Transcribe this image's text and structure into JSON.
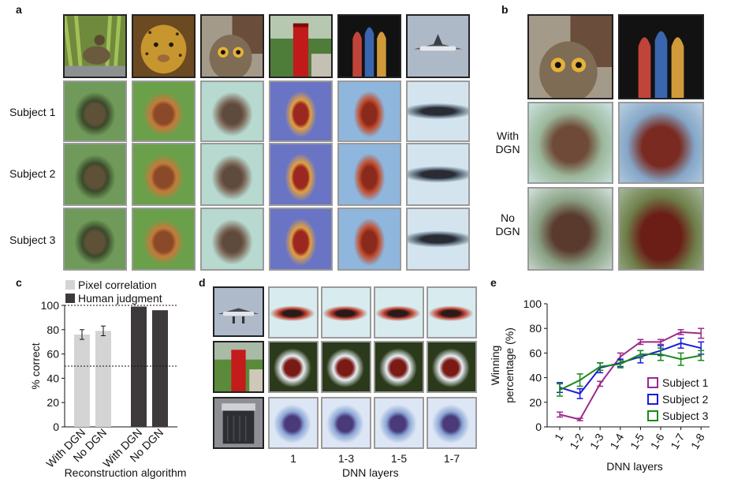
{
  "panels": {
    "a": "a",
    "b": "b",
    "c": "c",
    "d": "d",
    "e": "e"
  },
  "panel_a": {
    "subjects": [
      "Subject 1",
      "Subject 2",
      "Subject 3"
    ],
    "images": [
      "duck-image",
      "leopard-image",
      "owl-image",
      "red-postbox-image",
      "stained-glass-window-image",
      "airplane-image"
    ]
  },
  "panel_b": {
    "row_labels": {
      "with_dgn_1": "With",
      "with_dgn_2": "DGN",
      "no_dgn_1": "No",
      "no_dgn_2": "DGN"
    },
    "images": [
      "owl-image",
      "stained-glass-window-image"
    ]
  },
  "panel_d": {
    "xlabel": "DNN layers",
    "column_labels": [
      "1",
      "1-3",
      "1-5",
      "1-7"
    ],
    "images": [
      "airplane-image",
      "red-postbox-image",
      "paper-shredder-image"
    ]
  },
  "chart_data": [
    {
      "id": "c",
      "type": "bar",
      "categories": [
        "With DGN",
        "No DGN",
        "With DGN",
        "No DGN"
      ],
      "series": [
        {
          "name": "Pixel correlation",
          "values": [
            76,
            79,
            null,
            null
          ],
          "errors": [
            4,
            4,
            null,
            null
          ],
          "color": "#d4d4d4"
        },
        {
          "name": "Human judgment",
          "values": [
            null,
            null,
            99,
            96
          ],
          "errors": [
            null,
            null,
            0,
            0
          ],
          "color": "#3e3a3b"
        }
      ],
      "ylabel": "% correct",
      "xlabel": "Reconstruction algorithm",
      "yticks": [
        "0",
        "20",
        "40",
        "60",
        "80",
        "100"
      ],
      "ylim": [
        0,
        100
      ],
      "reference_lines": [
        50,
        100
      ],
      "legend": [
        "Pixel correlation",
        "Human judgment"
      ]
    },
    {
      "id": "e",
      "type": "line",
      "x": [
        "1",
        "1-2",
        "1-3",
        "1-4",
        "1-5",
        "1-6",
        "1-7",
        "1-8"
      ],
      "series": [
        {
          "name": "Subject 1",
          "color": "#9b2a8a",
          "values": [
            10,
            6,
            35,
            57,
            69,
            69,
            77,
            76
          ],
          "errors": [
            2,
            1,
            2,
            3,
            2,
            2,
            2,
            4
          ]
        },
        {
          "name": "Subject 2",
          "color": "#1a1ae0",
          "values": [
            32,
            27,
            48,
            52,
            57,
            62,
            68,
            64
          ],
          "errors": [
            4,
            4,
            4,
            3,
            5,
            4,
            4,
            5
          ]
        },
        {
          "name": "Subject 3",
          "color": "#1a8a1a",
          "values": [
            30,
            38,
            49,
            51,
            59,
            59,
            55,
            58
          ],
          "errors": [
            5,
            5,
            3,
            3,
            3,
            5,
            5,
            4
          ]
        }
      ],
      "ylabel_line1": "Winning",
      "ylabel_line2": "percentage (%)",
      "xlabel": "DNN layers",
      "yticks": [
        "0",
        "20",
        "40",
        "60",
        "80",
        "100"
      ],
      "ylim": [
        0,
        100
      ],
      "legend_position": "bottom-right"
    }
  ]
}
